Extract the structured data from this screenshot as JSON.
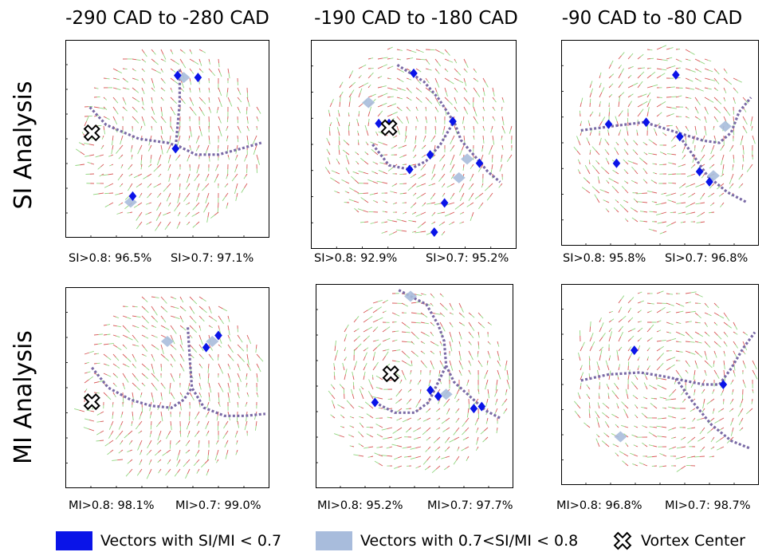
{
  "columns": [
    "-290 CAD to -280 CAD",
    "-190 CAD to -180 CAD",
    "-90 CAD to -80 CAD"
  ],
  "rows": [
    "SI Analysis",
    "MI Analysis"
  ],
  "chart_data": [
    {
      "type": "scatter",
      "row": "SI Analysis",
      "column": "-290 CAD to -280 CAD",
      "stats": {
        "high": "SI>0.8: 96.5%",
        "low": "SI>0.7: 97.1%"
      },
      "vortex_centers": [
        [
          0.13,
          0.47
        ]
      ],
      "low_regions": [
        [
          0.55,
          0.18
        ],
        [
          0.54,
          0.55
        ],
        [
          0.33,
          0.79
        ],
        [
          0.65,
          0.19
        ]
      ],
      "mid_regions": [
        [
          0.58,
          0.19
        ],
        [
          0.32,
          0.82
        ]
      ],
      "boundaries": [
        [
          [
            0.12,
            0.34
          ],
          [
            0.2,
            0.43
          ],
          [
            0.36,
            0.5
          ],
          [
            0.5,
            0.52
          ],
          [
            0.56,
            0.54
          ],
          [
            0.64,
            0.58
          ],
          [
            0.75,
            0.58
          ],
          [
            0.86,
            0.55
          ],
          [
            0.96,
            0.52
          ]
        ],
        [
          [
            0.56,
            0.15
          ],
          [
            0.56,
            0.32
          ],
          [
            0.54,
            0.55
          ]
        ]
      ]
    },
    {
      "type": "scatter",
      "row": "SI Analysis",
      "column": "-190 CAD to -180 CAD",
      "stats": {
        "high": "SI>0.8: 92.9%",
        "low": "SI>0.7: 95.2%"
      },
      "vortex_centers": [
        [
          0.38,
          0.42
        ]
      ],
      "low_regions": [
        [
          0.33,
          0.4
        ],
        [
          0.38,
          0.4
        ],
        [
          0.5,
          0.16
        ],
        [
          0.69,
          0.39
        ],
        [
          0.58,
          0.55
        ],
        [
          0.82,
          0.59
        ],
        [
          0.65,
          0.78
        ],
        [
          0.6,
          0.92
        ],
        [
          0.48,
          0.62
        ]
      ],
      "mid_regions": [
        [
          0.76,
          0.57
        ],
        [
          0.28,
          0.3
        ],
        [
          0.72,
          0.66
        ]
      ],
      "boundaries": [
        [
          [
            0.42,
            0.12
          ],
          [
            0.55,
            0.2
          ],
          [
            0.62,
            0.28
          ],
          [
            0.7,
            0.4
          ],
          [
            0.73,
            0.48
          ],
          [
            0.8,
            0.56
          ],
          [
            0.86,
            0.63
          ],
          [
            0.92,
            0.68
          ]
        ],
        [
          [
            0.3,
            0.5
          ],
          [
            0.38,
            0.6
          ],
          [
            0.48,
            0.62
          ],
          [
            0.56,
            0.58
          ],
          [
            0.63,
            0.5
          ],
          [
            0.69,
            0.4
          ]
        ]
      ]
    },
    {
      "type": "scatter",
      "row": "SI Analysis",
      "column": "-90 CAD to -80 CAD",
      "stats": {
        "high": "SI>0.8: 95.8%",
        "low": "SI>0.7: 96.8%"
      },
      "vortex_centers": [],
      "low_regions": [
        [
          0.24,
          0.41
        ],
        [
          0.43,
          0.4
        ],
        [
          0.6,
          0.47
        ],
        [
          0.28,
          0.6
        ],
        [
          0.7,
          0.64
        ],
        [
          0.75,
          0.69
        ],
        [
          0.58,
          0.17
        ]
      ],
      "mid_regions": [
        [
          0.77,
          0.66
        ],
        [
          0.83,
          0.42
        ]
      ],
      "boundaries": [
        [
          [
            0.1,
            0.44
          ],
          [
            0.25,
            0.42
          ],
          [
            0.42,
            0.4
          ],
          [
            0.52,
            0.43
          ],
          [
            0.62,
            0.46
          ],
          [
            0.72,
            0.49
          ],
          [
            0.8,
            0.5
          ],
          [
            0.86,
            0.45
          ],
          [
            0.9,
            0.35
          ],
          [
            0.96,
            0.28
          ]
        ],
        [
          [
            0.6,
            0.47
          ],
          [
            0.66,
            0.55
          ],
          [
            0.74,
            0.66
          ],
          [
            0.84,
            0.74
          ],
          [
            0.94,
            0.79
          ]
        ]
      ]
    },
    {
      "type": "scatter",
      "row": "MI Analysis",
      "column": "-290 CAD to -280 CAD",
      "stats": {
        "high": "MI>0.8: 98.1%",
        "low": "MI>0.7: 99.0%"
      },
      "vortex_centers": [
        [
          0.13,
          0.57
        ]
      ],
      "low_regions": [
        [
          0.75,
          0.24
        ],
        [
          0.69,
          0.3
        ]
      ],
      "mid_regions": [
        [
          0.5,
          0.27
        ],
        [
          0.72,
          0.27
        ]
      ],
      "boundaries": [
        [
          [
            0.13,
            0.4
          ],
          [
            0.21,
            0.5
          ],
          [
            0.32,
            0.56
          ],
          [
            0.42,
            0.59
          ],
          [
            0.52,
            0.6
          ],
          [
            0.58,
            0.56
          ],
          [
            0.62,
            0.5
          ]
        ],
        [
          [
            0.6,
            0.2
          ],
          [
            0.61,
            0.36
          ],
          [
            0.62,
            0.5
          ],
          [
            0.68,
            0.6
          ],
          [
            0.78,
            0.64
          ],
          [
            0.88,
            0.64
          ],
          [
            0.98,
            0.63
          ]
        ]
      ]
    },
    {
      "type": "scatter",
      "row": "MI Analysis",
      "column": "-190 CAD to -180 CAD",
      "stats": {
        "high": "MI>0.8: 95.2%",
        "low": "MI>0.7: 97.7%"
      },
      "vortex_centers": [
        [
          0.38,
          0.44
        ]
      ],
      "low_regions": [
        [
          0.58,
          0.52
        ],
        [
          0.62,
          0.55
        ],
        [
          0.8,
          0.61
        ],
        [
          0.84,
          0.6
        ],
        [
          0.3,
          0.58
        ]
      ],
      "mid_regions": [
        [
          0.48,
          0.06
        ],
        [
          0.66,
          0.54
        ]
      ],
      "boundaries": [
        [
          [
            0.42,
            0.03
          ],
          [
            0.56,
            0.1
          ],
          [
            0.62,
            0.2
          ],
          [
            0.65,
            0.28
          ],
          [
            0.66,
            0.4
          ],
          [
            0.7,
            0.48
          ],
          [
            0.78,
            0.55
          ],
          [
            0.86,
            0.62
          ],
          [
            0.94,
            0.66
          ]
        ],
        [
          [
            0.3,
            0.58
          ],
          [
            0.4,
            0.63
          ],
          [
            0.5,
            0.63
          ],
          [
            0.57,
            0.58
          ],
          [
            0.62,
            0.48
          ],
          [
            0.66,
            0.4
          ]
        ]
      ]
    },
    {
      "type": "scatter",
      "row": "MI Analysis",
      "column": "-90 CAD to -80 CAD",
      "stats": {
        "high": "MI>0.8: 96.8%",
        "low": "MI>0.7: 98.7%"
      },
      "vortex_centers": [],
      "low_regions": [
        [
          0.37,
          0.33
        ],
        [
          0.82,
          0.5
        ]
      ],
      "mid_regions": [
        [
          0.3,
          0.76
        ]
      ],
      "boundaries": [
        [
          [
            0.1,
            0.48
          ],
          [
            0.24,
            0.45
          ],
          [
            0.4,
            0.44
          ],
          [
            0.52,
            0.46
          ],
          [
            0.62,
            0.48
          ],
          [
            0.72,
            0.5
          ],
          [
            0.8,
            0.5
          ],
          [
            0.86,
            0.42
          ],
          [
            0.92,
            0.32
          ],
          [
            0.98,
            0.24
          ]
        ],
        [
          [
            0.58,
            0.47
          ],
          [
            0.66,
            0.58
          ],
          [
            0.76,
            0.7
          ],
          [
            0.86,
            0.78
          ],
          [
            0.96,
            0.82
          ]
        ]
      ]
    }
  ],
  "legend": {
    "low": "Vectors with SI/MI < 0.7",
    "mid": "Vectors with 0.7<SI/MI < 0.8",
    "vortex": "Vortex Center"
  },
  "colors": {
    "low": "#0a14e8",
    "mid": "#a8bcdc",
    "boundary": "#7a6aa6",
    "vector_red": "#d23a3a",
    "vector_green": "#7fcf6a",
    "frame": "#000000"
  }
}
